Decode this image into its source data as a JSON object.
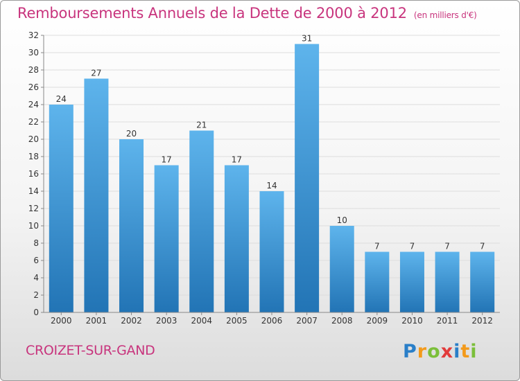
{
  "header": {
    "title": "Remboursements Annuels de la Dette de 2000 à 2012",
    "unit": "(en milliers d'€)"
  },
  "footer": {
    "commune": "CROIZET-SUR-GAND",
    "logo_text": "Proxiti"
  },
  "colors": {
    "title": "#c8347d",
    "bar_light": "#5eb4ec",
    "bar_dark": "#2274b5",
    "axis": "#888888",
    "grid": "#dddddd"
  },
  "chart_data": {
    "type": "bar",
    "title": "Remboursements Annuels de la Dette de 2000 à 2012",
    "xlabel": "",
    "ylabel": "",
    "categories": [
      "2000",
      "2001",
      "2002",
      "2003",
      "2004",
      "2005",
      "2006",
      "2007",
      "2008",
      "2009",
      "2010",
      "2011",
      "2012"
    ],
    "values": [
      24,
      27,
      20,
      17,
      21,
      17,
      14,
      31,
      10,
      7,
      7,
      7,
      7
    ],
    "ylim": [
      0,
      32
    ],
    "yticks": [
      0,
      2,
      4,
      6,
      8,
      10,
      12,
      14,
      16,
      18,
      20,
      22,
      24,
      26,
      28,
      30,
      32
    ],
    "grid": true,
    "data_labels": true
  }
}
